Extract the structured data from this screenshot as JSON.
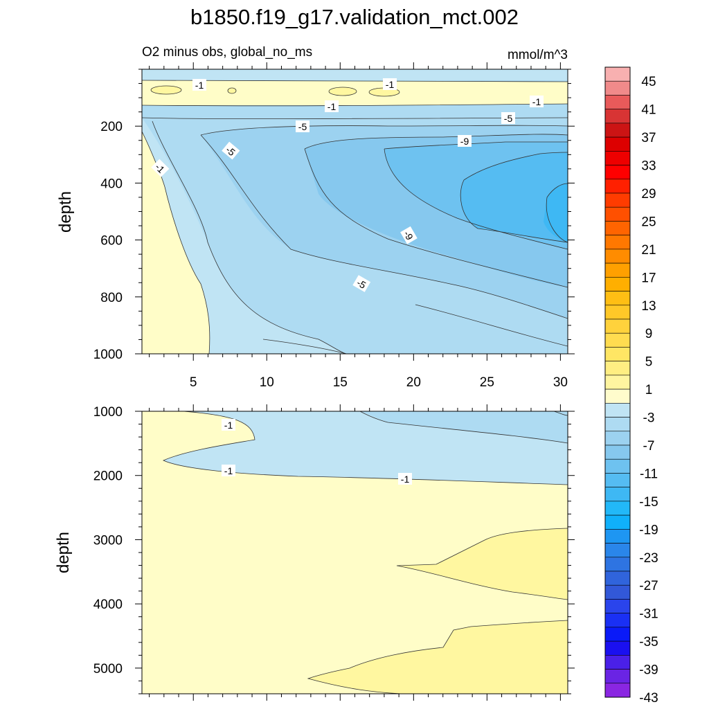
{
  "chart_data": {
    "type": "heatmap",
    "title": "b1850.f19_g17.validation_mct.002",
    "subtitle_left": "O2 minus obs, global_no_ms",
    "units": "mmol/m^3",
    "top_panel": {
      "ylabel": "depth",
      "ylim": [
        0,
        1000
      ],
      "y_ticks": [
        "200",
        "400",
        "600",
        "800",
        "1000"
      ],
      "xlim": [
        1.5,
        30.5
      ],
      "x_ticks": [
        "5",
        "10",
        "15",
        "20",
        "25",
        "30"
      ],
      "contour_labels": [
        "-1",
        "-1",
        "-1",
        "-1",
        "-1",
        "-5",
        "-5",
        "-5",
        "-9",
        "-9",
        "-5"
      ]
    },
    "bottom_panel": {
      "ylabel": "depth",
      "ylim": [
        1000,
        5400
      ],
      "y_ticks": [
        "1000",
        "2000",
        "3000",
        "4000",
        "5000"
      ],
      "contour_labels": [
        "-1",
        "-1",
        "-1"
      ]
    },
    "colorbar": {
      "labels": [
        "45",
        "41",
        "37",
        "33",
        "29",
        "25",
        "21",
        "17",
        "13",
        "9",
        "5",
        "1",
        "-3",
        "-7",
        "-11",
        "-15",
        "-19",
        "-23",
        "-27",
        "-31",
        "-35",
        "-39",
        "-43"
      ],
      "colors": [
        "#F8B0B0",
        "#F08A8A",
        "#E85A5A",
        "#D83434",
        "#CC1414",
        "#DD0000",
        "#EE0000",
        "#FF0000",
        "#FF2000",
        "#FF3C00",
        "#FF5000",
        "#FF6400",
        "#FF7800",
        "#FF8C00",
        "#FFA000",
        "#FFAF00",
        "#FFBE14",
        "#FFC828",
        "#FFD23C",
        "#FFDC50",
        "#FFE664",
        "#FFEE82",
        "#FFF5A0",
        "#FFFCCC",
        "#C0E4F4",
        "#AEDBF2",
        "#9CD2F0",
        "#86C8EE",
        "#6EC2F0",
        "#55BCF2",
        "#3EB8F4",
        "#22B8F8",
        "#10B0FA",
        "#1E96F2",
        "#2A86EA",
        "#2E74E2",
        "#3064DC",
        "#3258D8",
        "#2A44EC",
        "#1A30F4",
        "#0A1AF8",
        "#1A10F0",
        "#4A20E8",
        "#6A24E4",
        "#8A26E2"
      ]
    },
    "fill_colors": {
      "pos1": "#FFFDC8",
      "pos2": "#FFF7A0",
      "neg1": "#C0E4F4",
      "neg3": "#AEDBF2",
      "neg5": "#9CD2F0",
      "neg7": "#86C8EE",
      "neg9": "#6EC2F0",
      "neg11": "#55BCF2",
      "neg13": "#3EB8F4",
      "neg15": "#22B8F8"
    }
  }
}
